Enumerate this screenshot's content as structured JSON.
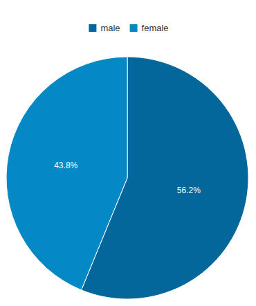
{
  "chart_data": {
    "type": "pie",
    "categories": [
      "male",
      "female"
    ],
    "values": [
      56.2,
      43.8
    ],
    "value_labels": [
      "56.2%",
      "43.8%"
    ],
    "colors": [
      "#03679b",
      "#0589c6"
    ],
    "data_labels": true,
    "legend": "top"
  }
}
